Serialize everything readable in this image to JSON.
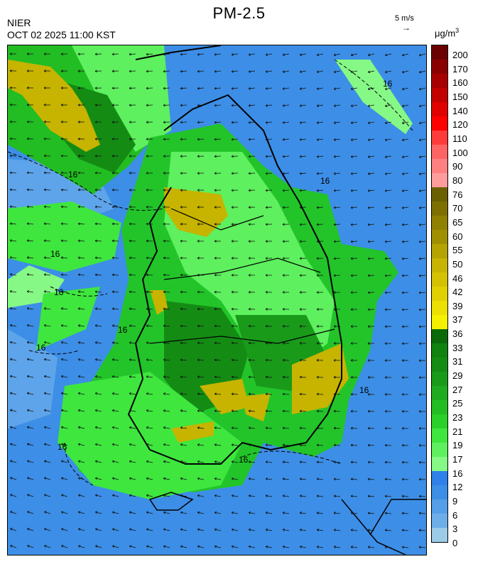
{
  "header": {
    "title": "PM-2.5",
    "agency": "NIER",
    "timestamp": "OCT 02 2025 11:00 KST",
    "wind_reference": "5 m/s",
    "wind_reference_arrow": "→",
    "unit_base": "μg/m",
    "unit_exp": "3"
  },
  "map": {
    "contour_label": "16",
    "ocean_color": "#3d8ee6",
    "land_color": "#22c42a",
    "vector_field": "wind",
    "features": [
      "korean-peninsula",
      "jeju-island",
      "ulleungdo",
      "japan-coast",
      "china-coast"
    ]
  },
  "legend": {
    "ticks": [
      "200",
      "170",
      "160",
      "150",
      "140",
      "120",
      "110",
      "100",
      "90",
      "80",
      "76",
      "70",
      "65",
      "60",
      "55",
      "50",
      "46",
      "42",
      "39",
      "37",
      "36",
      "33",
      "31",
      "29",
      "27",
      "25",
      "23",
      "21",
      "19",
      "17",
      "16",
      "12",
      "9",
      "6",
      "3",
      "0"
    ],
    "colors": [
      "#6b0000",
      "#8a0000",
      "#a80000",
      "#c20000",
      "#e00000",
      "#ff0000",
      "#ff3c3c",
      "#ff6464",
      "#ff8080",
      "#ff9c9c",
      "#6b6000",
      "#7d7000",
      "#8f8000",
      "#a09000",
      "#b5a300",
      "#c6b400",
      "#d4c200",
      "#e0d000",
      "#ebe000",
      "#f5f000",
      "#0a6a0a",
      "#0f820f",
      "#148c14",
      "#199a19",
      "#1fab1f",
      "#22bd22",
      "#28d028",
      "#3ee63e",
      "#5ef05e",
      "#86f886",
      "#2f80e8",
      "#3d8ee6",
      "#559ee8",
      "#6eaee8",
      "#9ccbe8"
    ]
  }
}
